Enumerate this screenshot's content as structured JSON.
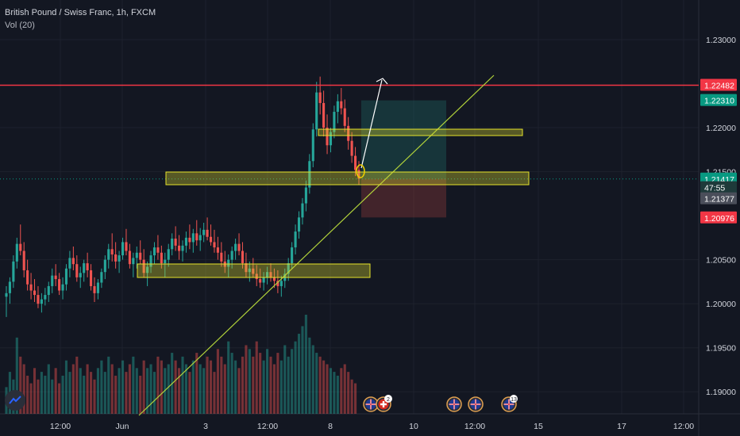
{
  "legend": {
    "title": "British Pound / Swiss Franc, 1h, FXCM",
    "indicator": "Vol (20)"
  },
  "colors": {
    "background": "#131722",
    "grid": "#1e222d",
    "up": "#26a69a",
    "down": "#ef5350",
    "resistance": "#f23645",
    "trendline": "#b2d33a",
    "zone_fill": "#d8d52e",
    "zone_stroke": "#e6e32b"
  },
  "price_axis": {
    "ticks": [
      "1.23000",
      "1.22000",
      "1.21500",
      "1.20500",
      "1.20000",
      "1.19500",
      "1.19000"
    ],
    "tags": [
      {
        "label": "1.22482",
        "price": 1.22482,
        "color": "#f23645"
      },
      {
        "label": "1.22310",
        "price": 1.2231,
        "color": "#089981"
      },
      {
        "label": "1.21417",
        "price": 1.21417,
        "color": "#089981"
      },
      {
        "label": "47:55",
        "price": 1.2132,
        "color": "#1e3a3a"
      },
      {
        "label": "1.21377",
        "price": 1.21193,
        "color": "#4a4e5a"
      },
      {
        "label": "1.20976",
        "price": 1.20976,
        "color": "#f23645"
      }
    ]
  },
  "time_axis": {
    "labels": [
      "12:00",
      "Jun",
      "3",
      "12:00",
      "8",
      "10",
      "12:00",
      "15",
      "17",
      "12:00"
    ]
  },
  "events": [
    {
      "icon": "uk-flag-icon",
      "badge": ""
    },
    {
      "icon": "swiss-flag-icon",
      "badge": "2"
    },
    {
      "icon": "uk-flag-icon",
      "badge": ""
    },
    {
      "icon": "uk-flag-icon",
      "badge": ""
    },
    {
      "icon": "uk-flag-icon",
      "badge": "13"
    }
  ],
  "chart_data": {
    "type": "candlestick",
    "symbol": "GBPCHF",
    "timeframe": "1h",
    "ylim": [
      1.1875,
      1.2345
    ],
    "ohlc": [
      [
        1.2008,
        1.202,
        1.1985,
        1.2012
      ],
      [
        1.2012,
        1.203,
        1.2,
        1.2025
      ],
      [
        1.2025,
        1.2055,
        1.2018,
        1.2048
      ],
      [
        1.2048,
        1.2075,
        1.204,
        1.2068
      ],
      [
        1.2068,
        1.209,
        1.2055,
        1.206
      ],
      [
        1.206,
        1.207,
        1.203,
        1.2038
      ],
      [
        1.2038,
        1.205,
        1.2015,
        1.2022
      ],
      [
        1.2022,
        1.2035,
        1.2005,
        1.2015
      ],
      [
        1.2015,
        1.2028,
        1.2002,
        1.201
      ],
      [
        1.201,
        1.202,
        1.1995,
        1.2
      ],
      [
        1.2,
        1.2012,
        1.199,
        1.2005
      ],
      [
        1.2005,
        1.2018,
        1.1998,
        1.201
      ],
      [
        1.201,
        1.2025,
        1.2002,
        1.202
      ],
      [
        1.202,
        1.204,
        1.2012,
        1.2032
      ],
      [
        1.2032,
        1.2045,
        1.202,
        1.2028
      ],
      [
        1.2028,
        1.2035,
        1.201,
        1.2015
      ],
      [
        1.2015,
        1.203,
        1.2005,
        1.2022
      ],
      [
        1.2022,
        1.2045,
        1.2015,
        1.204
      ],
      [
        1.204,
        1.206,
        1.203,
        1.2052
      ],
      [
        1.2052,
        1.2065,
        1.2038,
        1.2045
      ],
      [
        1.2045,
        1.2055,
        1.2025,
        1.203
      ],
      [
        1.203,
        1.2042,
        1.2018,
        1.2035
      ],
      [
        1.2035,
        1.205,
        1.2025,
        1.2046
      ],
      [
        1.2046,
        1.2058,
        1.203,
        1.2038
      ],
      [
        1.2038,
        1.2045,
        1.2015,
        1.202
      ],
      [
        1.202,
        1.203,
        1.2002,
        1.2012
      ],
      [
        1.2012,
        1.2028,
        1.2005,
        1.2024
      ],
      [
        1.2024,
        1.204,
        1.2018,
        1.2036
      ],
      [
        1.2036,
        1.2055,
        1.2028,
        1.205
      ],
      [
        1.205,
        1.2068,
        1.204,
        1.2062
      ],
      [
        1.2062,
        1.208,
        1.2048,
        1.2056
      ],
      [
        1.2056,
        1.207,
        1.204,
        1.2048
      ],
      [
        1.2048,
        1.206,
        1.2035,
        1.2055
      ],
      [
        1.2055,
        1.2075,
        1.205,
        1.207
      ],
      [
        1.207,
        1.2085,
        1.2055,
        1.206
      ],
      [
        1.206,
        1.2068,
        1.204,
        1.2045
      ],
      [
        1.2045,
        1.2058,
        1.203,
        1.2052
      ],
      [
        1.2052,
        1.2065,
        1.204,
        1.2058
      ],
      [
        1.2058,
        1.2072,
        1.2045,
        1.205
      ],
      [
        1.205,
        1.2062,
        1.203,
        1.2035
      ],
      [
        1.2035,
        1.2048,
        1.202,
        1.2042
      ],
      [
        1.2042,
        1.206,
        1.2035,
        1.2055
      ],
      [
        1.2055,
        1.207,
        1.2045,
        1.2064
      ],
      [
        1.2064,
        1.2078,
        1.205,
        1.2058
      ],
      [
        1.2058,
        1.2066,
        1.204,
        1.2046
      ],
      [
        1.2046,
        1.2058,
        1.203,
        1.205
      ],
      [
        1.205,
        1.2068,
        1.2042,
        1.2062
      ],
      [
        1.2062,
        1.208,
        1.2055,
        1.2074
      ],
      [
        1.2074,
        1.2088,
        1.206,
        1.2066
      ],
      [
        1.2066,
        1.2078,
        1.205,
        1.206
      ],
      [
        1.206,
        1.2072,
        1.2048,
        1.2066
      ],
      [
        1.2066,
        1.2082,
        1.2058,
        1.2075
      ],
      [
        1.2075,
        1.209,
        1.2062,
        1.207
      ],
      [
        1.207,
        1.2085,
        1.2058,
        1.208
      ],
      [
        1.208,
        1.2095,
        1.2066,
        1.2072
      ],
      [
        1.2072,
        1.2086,
        1.206,
        1.2078
      ],
      [
        1.2078,
        1.2092,
        1.207,
        1.2084
      ],
      [
        1.2084,
        1.2098,
        1.2072,
        1.2076
      ],
      [
        1.2076,
        1.209,
        1.2066,
        1.207
      ],
      [
        1.207,
        1.2084,
        1.2058,
        1.2064
      ],
      [
        1.2064,
        1.2076,
        1.205,
        1.2058
      ],
      [
        1.2058,
        1.207,
        1.2042,
        1.2048
      ],
      [
        1.2048,
        1.206,
        1.2035,
        1.2042
      ],
      [
        1.2042,
        1.2056,
        1.203,
        1.205
      ],
      [
        1.205,
        1.2065,
        1.204,
        1.206
      ],
      [
        1.206,
        1.2074,
        1.205,
        1.2068
      ],
      [
        1.2068,
        1.208,
        1.2055,
        1.206
      ],
      [
        1.206,
        1.207,
        1.204,
        1.2046
      ],
      [
        1.2046,
        1.2058,
        1.203,
        1.2036
      ],
      [
        1.2036,
        1.2048,
        1.2025,
        1.204
      ],
      [
        1.204,
        1.2052,
        1.203,
        1.2034
      ],
      [
        1.2034,
        1.2044,
        1.202,
        1.2028
      ],
      [
        1.2028,
        1.204,
        1.2018,
        1.2024
      ],
      [
        1.2024,
        1.2036,
        1.2015,
        1.203
      ],
      [
        1.203,
        1.2042,
        1.2022,
        1.2036
      ],
      [
        1.2036,
        1.2046,
        1.2025,
        1.203
      ],
      [
        1.203,
        1.204,
        1.2018,
        1.2026
      ],
      [
        1.2026,
        1.2038,
        1.2012,
        1.202
      ],
      [
        1.202,
        1.2032,
        1.2008,
        1.2026
      ],
      [
        1.2026,
        1.204,
        1.2018,
        1.2034
      ],
      [
        1.2034,
        1.2052,
        1.2026,
        1.2046
      ],
      [
        1.2046,
        1.207,
        1.204,
        1.2064
      ],
      [
        1.2064,
        1.209,
        1.2056,
        1.2082
      ],
      [
        1.2082,
        1.2105,
        1.2074,
        1.2098
      ],
      [
        1.2098,
        1.212,
        1.209,
        1.2114
      ],
      [
        1.2114,
        1.214,
        1.2105,
        1.2132
      ],
      [
        1.2132,
        1.217,
        1.2125,
        1.2162
      ],
      [
        1.2162,
        1.2205,
        1.2155,
        1.2198
      ],
      [
        1.2198,
        1.2252,
        1.219,
        1.224
      ],
      [
        1.224,
        1.2258,
        1.2215,
        1.2228
      ],
      [
        1.2228,
        1.2242,
        1.219,
        1.22
      ],
      [
        1.22,
        1.2215,
        1.217,
        1.218
      ],
      [
        1.218,
        1.22,
        1.2172,
        1.2195
      ],
      [
        1.2195,
        1.2225,
        1.2188,
        1.2218
      ],
      [
        1.2218,
        1.2238,
        1.2205,
        1.223
      ],
      [
        1.223,
        1.2245,
        1.2215,
        1.2222
      ],
      [
        1.2222,
        1.2232,
        1.2195,
        1.2202
      ],
      [
        1.2202,
        1.2212,
        1.2175,
        1.2185
      ],
      [
        1.2185,
        1.2195,
        1.216,
        1.2168
      ],
      [
        1.2168,
        1.2178,
        1.2145,
        1.2152
      ],
      [
        1.2152,
        1.2162,
        1.2135,
        1.2142
      ]
    ],
    "volume": [
      14,
      22,
      18,
      40,
      30,
      26,
      20,
      16,
      24,
      18,
      22,
      20,
      26,
      18,
      24,
      16,
      20,
      28,
      22,
      26,
      30,
      24,
      20,
      26,
      22,
      18,
      24,
      28,
      22,
      30,
      26,
      20,
      24,
      28,
      22,
      26,
      30,
      24,
      20,
      28,
      24,
      26,
      22,
      30,
      28,
      24,
      26,
      32,
      28,
      24,
      30,
      26,
      22,
      28,
      32,
      26,
      24,
      30,
      28,
      22,
      34,
      30,
      26,
      38,
      32,
      28,
      24,
      30,
      36,
      34,
      30,
      38,
      32,
      28,
      34,
      30,
      26,
      32,
      28,
      36,
      30,
      34,
      38,
      42,
      46,
      52,
      40,
      36,
      32,
      30,
      28,
      26,
      24,
      22,
      20,
      24,
      26,
      22,
      18,
      16
    ]
  }
}
